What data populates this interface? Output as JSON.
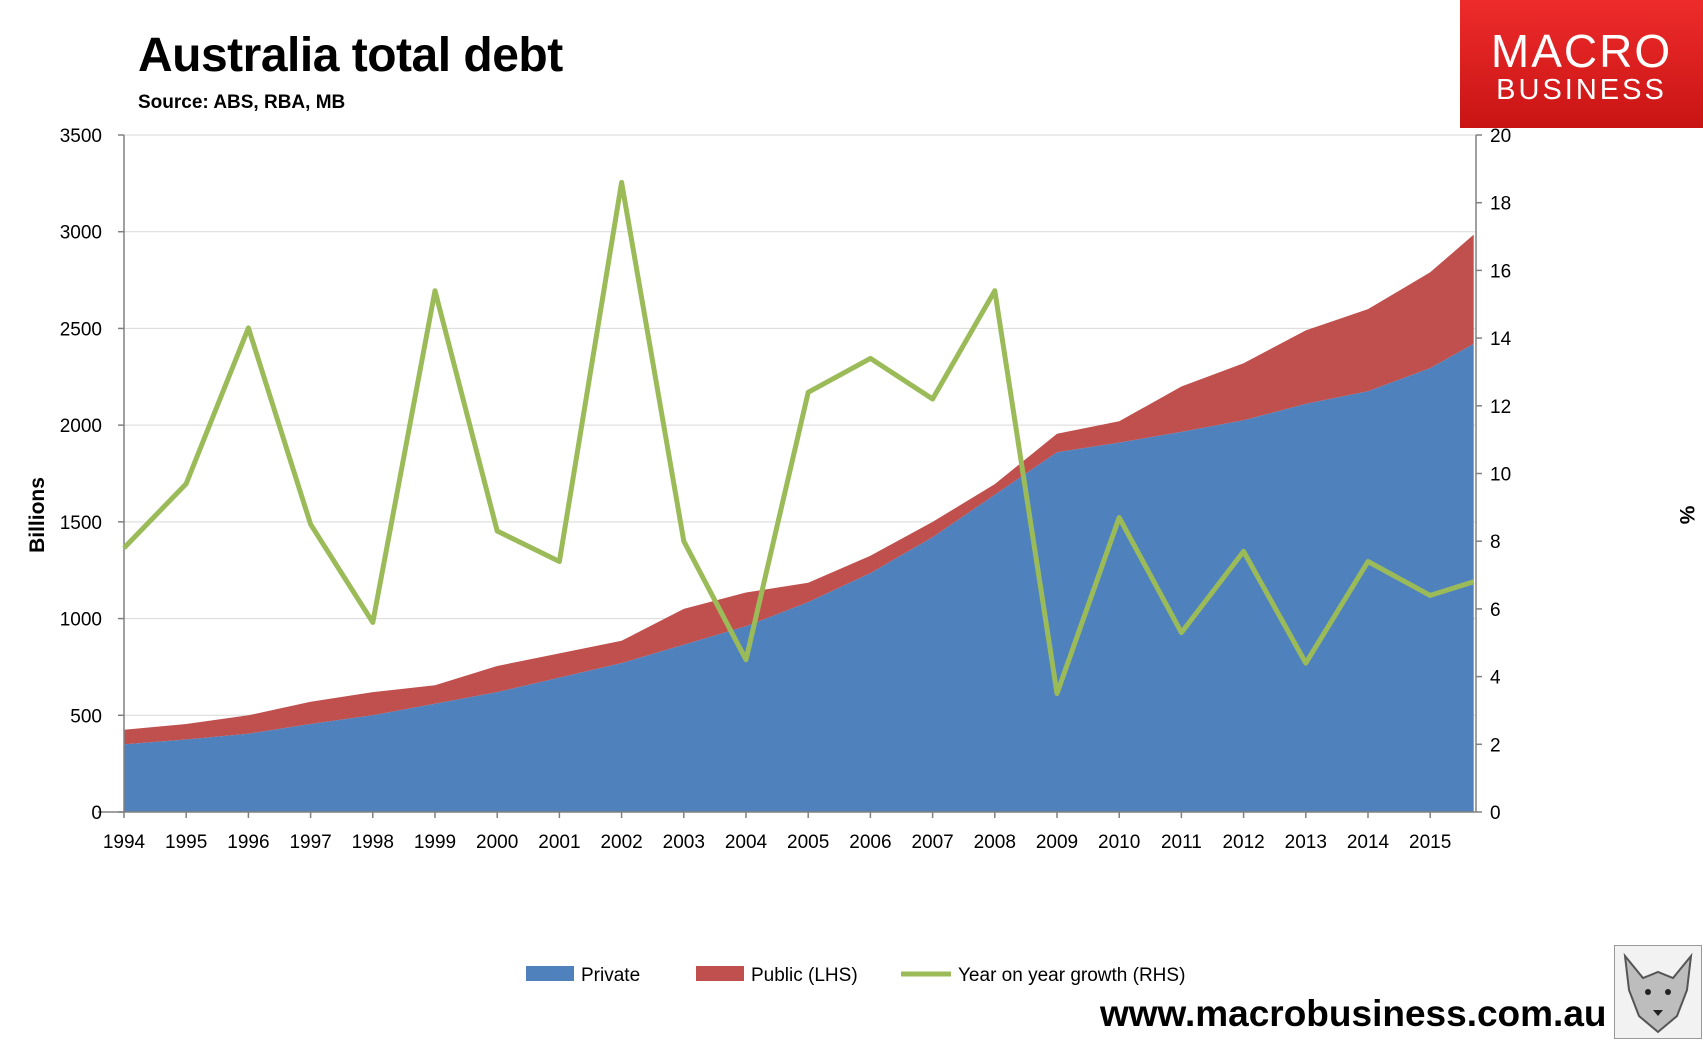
{
  "header": {
    "title": "Australia total debt",
    "subtitle": "Source: ABS, RBA, MB"
  },
  "logo": {
    "line1": "MACRO",
    "line2": "BUSINESS",
    "color": "#e31e24"
  },
  "footer": {
    "url": "www.macrobusiness.com.au"
  },
  "colors": {
    "private": "#4f81bd",
    "public": "#c0504d",
    "growth": "#9bbb59",
    "axis": "#808080",
    "grid": "#d9d9d9"
  },
  "chart_data": {
    "type": "area",
    "title": "Australia total debt",
    "subtitle": "Source: ABS, RBA, MB",
    "ylabel": "Billions",
    "y2label": "%",
    "ylim": [
      0,
      3500
    ],
    "y2lim": [
      0,
      20
    ],
    "yticks": [
      0,
      500,
      1000,
      1500,
      2000,
      2500,
      3000,
      3500
    ],
    "y2ticks": [
      0,
      2,
      4,
      6,
      8,
      10,
      12,
      14,
      16,
      18,
      20
    ],
    "xticks": [
      "1994",
      "1995",
      "1996",
      "1997",
      "1998",
      "1999",
      "2000",
      "2001",
      "2002",
      "2003",
      "2004",
      "2005",
      "2006",
      "2007",
      "2008",
      "2009",
      "2010",
      "2011",
      "2012",
      "2013",
      "2014",
      "2015"
    ],
    "x": [
      1994,
      1995,
      1996,
      1997,
      1998,
      1999,
      2000,
      2001,
      2002,
      2003,
      2004,
      2005,
      2006,
      2007,
      2008,
      2009,
      2010,
      2011,
      2012,
      2013,
      2014,
      2015,
      2015.7
    ],
    "series": [
      {
        "name": "Private",
        "type": "area",
        "axis": "left",
        "color": "#4f81bd",
        "values": [
          350,
          375,
          405,
          455,
          500,
          560,
          620,
          695,
          770,
          865,
          960,
          1085,
          1235,
          1420,
          1640,
          1860,
          1910,
          1965,
          2025,
          2110,
          2175,
          2295,
          2420
        ]
      },
      {
        "name": "Public (LHS)",
        "type": "area",
        "axis": "left",
        "stacked_total": [
          425,
          455,
          500,
          570,
          620,
          655,
          755,
          820,
          885,
          1050,
          1135,
          1185,
          1325,
          1500,
          1695,
          1955,
          2020,
          2200,
          2320,
          2490,
          2600,
          2790,
          2985
        ],
        "color": "#c0504d"
      },
      {
        "name": "Year on year growth (RHS)",
        "type": "line",
        "axis": "right",
        "color": "#9bbb59",
        "values": [
          7.8,
          9.7,
          14.3,
          8.5,
          5.6,
          15.4,
          8.3,
          7.4,
          18.6,
          8.0,
          4.5,
          12.4,
          13.4,
          12.2,
          15.4,
          3.5,
          8.7,
          5.3,
          7.7,
          4.4,
          7.4,
          6.4,
          6.8
        ]
      }
    ],
    "grid": true,
    "legend": "bottom"
  }
}
